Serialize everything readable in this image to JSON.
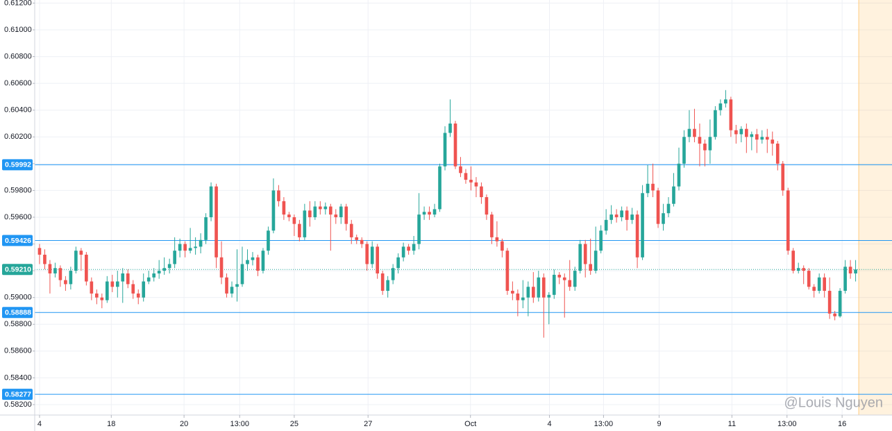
{
  "chart_data": {
    "type": "candlestick",
    "up_color": "#26a69a",
    "down_color": "#ef5350",
    "grid": true,
    "ylim": [
      0.58122,
      0.61223
    ],
    "yticks": [
      {
        "value": 0.582,
        "label": "0.58200"
      },
      {
        "value": 0.584,
        "label": "0.58400"
      },
      {
        "value": 0.586,
        "label": "0.58600"
      },
      {
        "value": 0.588,
        "label": "0.58800"
      },
      {
        "value": 0.59,
        "label": "0.59000"
      },
      {
        "value": 0.592,
        "label": "0.59200"
      },
      {
        "value": 0.594,
        "label": "0.59400"
      },
      {
        "value": 0.596,
        "label": "0.59600"
      },
      {
        "value": 0.598,
        "label": "0.59800"
      },
      {
        "value": 0.6,
        "label": "0.60000"
      },
      {
        "value": 0.602,
        "label": "0.60200"
      },
      {
        "value": 0.604,
        "label": "0.60400"
      },
      {
        "value": 0.606,
        "label": "0.60600"
      },
      {
        "value": 0.608,
        "label": "0.60800"
      },
      {
        "value": 0.61,
        "label": "0.61000"
      },
      {
        "value": 0.612,
        "label": "0.61200"
      }
    ],
    "xlim": [
      -0.93,
      164
    ],
    "xticks": [
      {
        "value": 0,
        "label": "4"
      },
      {
        "value": 13.8,
        "label": "18"
      },
      {
        "value": 27.8,
        "label": "20"
      },
      {
        "value": 38.5,
        "label": "13:00"
      },
      {
        "value": 49,
        "label": "25"
      },
      {
        "value": 63.2,
        "label": "27"
      },
      {
        "value": 82.9,
        "label": "Oct"
      },
      {
        "value": 98.1,
        "label": "4"
      },
      {
        "value": 108.5,
        "label": "13:00"
      },
      {
        "value": 119.2,
        "label": "9"
      },
      {
        "value": 133.2,
        "label": "11"
      },
      {
        "value": 143.8,
        "label": "13:00"
      },
      {
        "value": 154.4,
        "label": "16"
      }
    ],
    "hlines": [
      {
        "value": 0.59992,
        "label": "0.59992"
      },
      {
        "value": 0.59426,
        "label": "0.59426"
      },
      {
        "value": 0.58888,
        "label": "0.58888"
      },
      {
        "value": 0.58277,
        "label": "0.58277"
      }
    ],
    "hline_color": "#2196f3",
    "last_price": {
      "value": 0.5921,
      "label": "0.59210"
    },
    "watermark": "@Louis Nguyen",
    "open": [
      0.5937,
      0.5932,
      0.5925,
      0.5918,
      0.5922,
      0.5913,
      0.591,
      0.592,
      0.5935,
      0.5932,
      0.5912,
      0.5903,
      0.59,
      0.5898,
      0.5912,
      0.5908,
      0.5912,
      0.5918,
      0.591,
      0.5903,
      0.59,
      0.5912,
      0.5915,
      0.5918,
      0.592,
      0.5922,
      0.5925,
      0.5935,
      0.594,
      0.5935,
      0.5937,
      0.5938,
      0.5943,
      0.596,
      0.5983,
      0.593,
      0.5915,
      0.5903,
      0.5908,
      0.591,
      0.5925,
      0.5928,
      0.593,
      0.592,
      0.5935,
      0.595,
      0.598,
      0.5972,
      0.5962,
      0.596,
      0.5955,
      0.5945,
      0.5965,
      0.596,
      0.5968,
      0.5966,
      0.5968,
      0.5962,
      0.596,
      0.5968,
      0.5955,
      0.5945,
      0.5943,
      0.594,
      0.5925,
      0.5938,
      0.5918,
      0.5905,
      0.5913,
      0.5922,
      0.593,
      0.5938,
      0.5935,
      0.594,
      0.5962,
      0.5964,
      0.5962,
      0.5966,
      0.5998,
      0.6023,
      0.603,
      0.5998,
      0.5993,
      0.5988,
      0.5986,
      0.5983,
      0.5975,
      0.5962,
      0.5945,
      0.5942,
      0.5935,
      0.5905,
      0.5903,
      0.5898,
      0.59,
      0.5908,
      0.59,
      0.5915,
      0.59,
      0.5902,
      0.5917,
      0.5915,
      0.5913,
      0.5908,
      0.592,
      0.594,
      0.5925,
      0.592,
      0.5935,
      0.595,
      0.5958,
      0.5962,
      0.596,
      0.5965,
      0.5958,
      0.5962,
      0.593,
      0.5978,
      0.5985,
      0.598,
      0.5955,
      0.5963,
      0.597,
      0.5983,
      0.6,
      0.602,
      0.6026,
      0.602,
      0.6015,
      0.601,
      0.602,
      0.604,
      0.6045,
      0.6048,
      0.6025,
      0.6022,
      0.6026,
      0.602,
      0.6022,
      0.6018,
      0.602,
      0.6018,
      0.6015,
      0.6,
      0.598,
      0.5935,
      0.592,
      0.5922,
      0.592,
      0.5908,
      0.5905,
      0.5915,
      0.5905,
      0.5888,
      0.5886,
      0.5905,
      0.5923,
      0.5918
    ],
    "high": [
      0.594,
      0.5936,
      0.5928,
      0.5926,
      0.5924,
      0.5916,
      0.5923,
      0.5938,
      0.5937,
      0.5934,
      0.5915,
      0.5906,
      0.5903,
      0.5916,
      0.5917,
      0.592,
      0.5922,
      0.5921,
      0.5913,
      0.5906,
      0.5918,
      0.592,
      0.5922,
      0.5928,
      0.593,
      0.5929,
      0.5945,
      0.5944,
      0.5942,
      0.5952,
      0.5945,
      0.5948,
      0.5963,
      0.5986,
      0.5985,
      0.5942,
      0.5918,
      0.5912,
      0.5936,
      0.5938,
      0.5936,
      0.5934,
      0.5932,
      0.5937,
      0.5953,
      0.5989,
      0.5984,
      0.5975,
      0.5964,
      0.5962,
      0.5958,
      0.597,
      0.5972,
      0.5972,
      0.5972,
      0.5971,
      0.597,
      0.5966,
      0.597,
      0.597,
      0.5958,
      0.5947,
      0.5945,
      0.5942,
      0.5942,
      0.594,
      0.592,
      0.5916,
      0.5925,
      0.5933,
      0.5941,
      0.594,
      0.5946,
      0.5978,
      0.5968,
      0.5968,
      0.597,
      0.6,
      0.6028,
      0.6048,
      0.6032,
      0.6005,
      0.5996,
      0.5998,
      0.599,
      0.5986,
      0.5977,
      0.5964,
      0.5957,
      0.5944,
      0.5937,
      0.5912,
      0.5906,
      0.5913,
      0.5912,
      0.5919,
      0.592,
      0.5918,
      0.5904,
      0.5921,
      0.5919,
      0.5918,
      0.5928,
      0.5923,
      0.5943,
      0.5943,
      0.5944,
      0.5953,
      0.5954,
      0.5966,
      0.5969,
      0.5966,
      0.5968,
      0.5968,
      0.5967,
      0.5965,
      0.5984,
      0.5999,
      0.6,
      0.5982,
      0.597,
      0.5975,
      0.5993,
      0.6012,
      0.6025,
      0.604,
      0.6041,
      0.603,
      0.6018,
      0.6033,
      0.6043,
      0.6048,
      0.6055,
      0.605,
      0.6029,
      0.6028,
      0.603,
      0.6024,
      0.6026,
      0.6025,
      0.6026,
      0.6024,
      0.6017,
      0.6002,
      0.5982,
      0.5937,
      0.5926,
      0.5924,
      0.5922,
      0.591,
      0.5918,
      0.5918,
      0.5915,
      0.589,
      0.5907,
      0.5928,
      0.5928,
      0.5928
    ],
    "low": [
      0.5925,
      0.5921,
      0.5903,
      0.5915,
      0.5908,
      0.5905,
      0.5906,
      0.5918,
      0.592,
      0.5909,
      0.5898,
      0.5895,
      0.5892,
      0.5896,
      0.5904,
      0.59,
      0.5896,
      0.5907,
      0.5899,
      0.5895,
      0.5897,
      0.591,
      0.5912,
      0.5914,
      0.5917,
      0.5918,
      0.5922,
      0.593,
      0.593,
      0.5933,
      0.5932,
      0.5933,
      0.594,
      0.5957,
      0.5922,
      0.591,
      0.59,
      0.59,
      0.5897,
      0.5908,
      0.592,
      0.5924,
      0.5916,
      0.5918,
      0.5932,
      0.5948,
      0.5968,
      0.5958,
      0.5957,
      0.5946,
      0.5942,
      0.5943,
      0.5953,
      0.5958,
      0.5962,
      0.5962,
      0.5935,
      0.5955,
      0.5955,
      0.595,
      0.594,
      0.594,
      0.5937,
      0.592,
      0.5922,
      0.5914,
      0.5902,
      0.59,
      0.591,
      0.5918,
      0.5927,
      0.5932,
      0.5932,
      0.5936,
      0.5958,
      0.5958,
      0.596,
      0.5964,
      0.5995,
      0.602,
      0.5996,
      0.599,
      0.5985,
      0.598,
      0.5975,
      0.597,
      0.5958,
      0.594,
      0.5938,
      0.593,
      0.5902,
      0.5898,
      0.5886,
      0.5892,
      0.5886,
      0.5896,
      0.5897,
      0.587,
      0.588,
      0.5899,
      0.591,
      0.5885,
      0.5905,
      0.5905,
      0.5918,
      0.5915,
      0.5917,
      0.5918,
      0.5933,
      0.5947,
      0.5955,
      0.5956,
      0.5957,
      0.595,
      0.5955,
      0.5922,
      0.5928,
      0.5975,
      0.5975,
      0.5952,
      0.595,
      0.596,
      0.5968,
      0.598,
      0.5997,
      0.6016,
      0.6016,
      0.5998,
      0.5998,
      0.6,
      0.6018,
      0.6036,
      0.6042,
      0.602,
      0.6015,
      0.6016,
      0.6008,
      0.601,
      0.6008,
      0.6015,
      0.6008,
      0.6006,
      0.5995,
      0.5976,
      0.5932,
      0.5918,
      0.5918,
      0.591,
      0.5906,
      0.59,
      0.5903,
      0.59,
      0.5884,
      0.5883,
      0.5885,
      0.5903,
      0.5914,
      0.5912
    ],
    "close": [
      0.5932,
      0.5925,
      0.5918,
      0.5922,
      0.5913,
      0.591,
      0.592,
      0.5935,
      0.5932,
      0.5912,
      0.5903,
      0.59,
      0.5898,
      0.5912,
      0.5908,
      0.5912,
      0.5918,
      0.591,
      0.5903,
      0.59,
      0.5912,
      0.5915,
      0.5918,
      0.592,
      0.5922,
      0.5925,
      0.5935,
      0.594,
      0.5935,
      0.5937,
      0.5938,
      0.5943,
      0.596,
      0.5983,
      0.593,
      0.5915,
      0.5903,
      0.5908,
      0.591,
      0.5925,
      0.5928,
      0.593,
      0.592,
      0.5935,
      0.595,
      0.598,
      0.5972,
      0.5962,
      0.596,
      0.5955,
      0.5945,
      0.5965,
      0.596,
      0.5968,
      0.5966,
      0.5968,
      0.5962,
      0.596,
      0.5968,
      0.5955,
      0.5945,
      0.5943,
      0.594,
      0.5925,
      0.5938,
      0.5918,
      0.5905,
      0.5913,
      0.5922,
      0.593,
      0.5938,
      0.5935,
      0.594,
      0.5962,
      0.5964,
      0.5962,
      0.5966,
      0.5998,
      0.6023,
      0.603,
      0.5998,
      0.5993,
      0.5988,
      0.5986,
      0.5983,
      0.5975,
      0.5962,
      0.5945,
      0.5942,
      0.5935,
      0.5905,
      0.5903,
      0.5898,
      0.59,
      0.5908,
      0.59,
      0.5915,
      0.59,
      0.5902,
      0.5917,
      0.5915,
      0.5913,
      0.5908,
      0.592,
      0.594,
      0.5925,
      0.592,
      0.5935,
      0.595,
      0.5958,
      0.5962,
      0.596,
      0.5965,
      0.5958,
      0.5962,
      0.593,
      0.5978,
      0.5985,
      0.598,
      0.5955,
      0.5963,
      0.597,
      0.5983,
      0.6,
      0.602,
      0.6026,
      0.602,
      0.6015,
      0.601,
      0.602,
      0.604,
      0.6045,
      0.6048,
      0.6025,
      0.6022,
      0.6026,
      0.602,
      0.6022,
      0.6018,
      0.602,
      0.6018,
      0.6015,
      0.6,
      0.598,
      0.5935,
      0.592,
      0.5922,
      0.592,
      0.5908,
      0.5905,
      0.5915,
      0.5905,
      0.5888,
      0.5886,
      0.5905,
      0.5923,
      0.5918,
      0.5921
    ]
  }
}
